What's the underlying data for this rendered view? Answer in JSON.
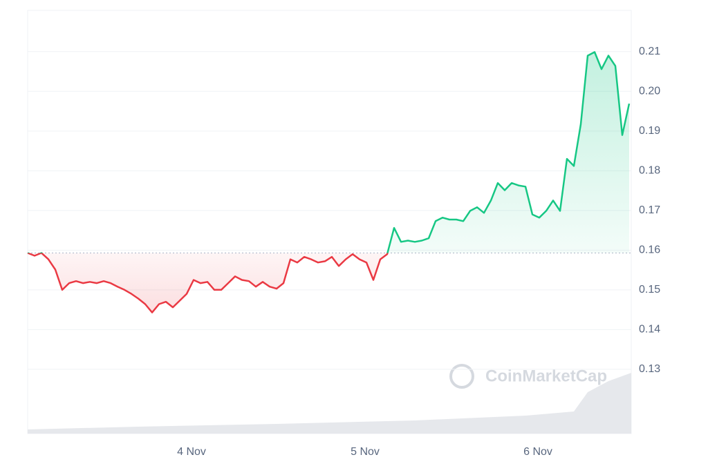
{
  "chart_data": {
    "type": "baseline-line",
    "watermark": "CoinMarketCap",
    "values": [
      0.1593,
      0.1586,
      0.1593,
      0.1577,
      0.1551,
      0.15,
      0.1517,
      0.1522,
      0.1517,
      0.152,
      0.1517,
      0.1522,
      0.1517,
      0.1508,
      0.15,
      0.149,
      0.1478,
      0.1464,
      0.1443,
      0.1464,
      0.147,
      0.1456,
      0.1473,
      0.149,
      0.1525,
      0.1517,
      0.152,
      0.15,
      0.15,
      0.1517,
      0.1534,
      0.1525,
      0.1522,
      0.1508,
      0.152,
      0.1508,
      0.1503,
      0.1517,
      0.1577,
      0.1569,
      0.1583,
      0.1577,
      0.1569,
      0.1572,
      0.1583,
      0.156,
      0.1577,
      0.159,
      0.1577,
      0.1569,
      0.1525,
      0.1577,
      0.159,
      0.1656,
      0.1621,
      0.1624,
      0.1621,
      0.1624,
      0.163,
      0.1673,
      0.1682,
      0.1677,
      0.1677,
      0.1673,
      0.1699,
      0.1708,
      0.1694,
      0.1725,
      0.1769,
      0.1751,
      0.1769,
      0.1763,
      0.176,
      0.169,
      0.1682,
      0.1699,
      0.1725,
      0.1699,
      0.183,
      0.1812,
      0.1917,
      0.209,
      0.2099,
      0.2056,
      0.209,
      0.2064,
      0.189,
      0.1969
    ],
    "baseline": 0.1593,
    "up_color": "#16c784",
    "down_color": "#ea3943",
    "xlim": [
      0,
      87.3
    ],
    "xticks": [
      {
        "value": 23.7,
        "label": "4 Nov"
      },
      {
        "value": 48.8,
        "label": "5 Nov"
      },
      {
        "value": 73.8,
        "label": "6 Nov"
      }
    ],
    "ylim": [
      0.1138,
      0.2204
    ],
    "yticks": [
      0.13,
      0.14,
      0.15,
      0.16,
      0.17,
      0.18,
      0.19,
      {
        "value": 0.2,
        "label": "0.20"
      },
      0.21
    ],
    "grid": true
  }
}
